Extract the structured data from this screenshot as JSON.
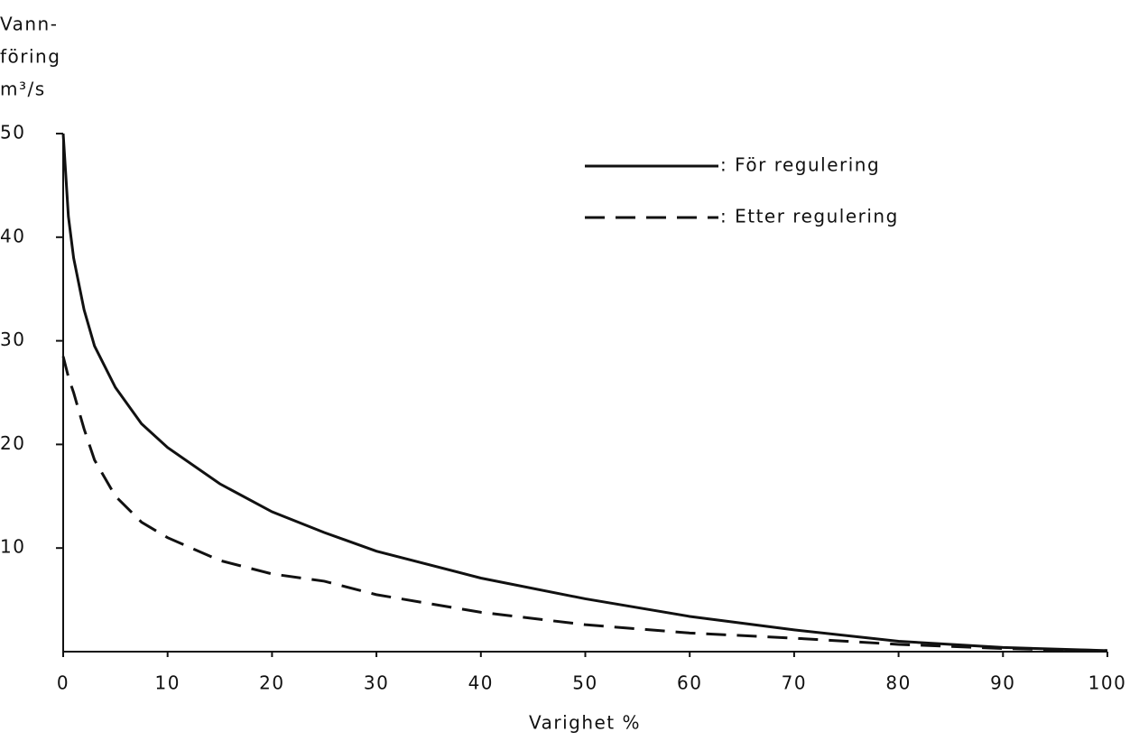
{
  "chart_data": {
    "type": "line",
    "ylabel": [
      "Vann-",
      "föring",
      "m³/s"
    ],
    "xlabel": "Varighet %",
    "x": [
      0,
      0.5,
      1,
      2,
      3,
      5,
      7.5,
      10,
      15,
      20,
      25,
      30,
      40,
      50,
      60,
      70,
      80,
      90,
      100
    ],
    "series": [
      {
        "name": ": För regulering",
        "color": "#111111",
        "linestyle": "solid",
        "values": [
          50,
          42,
          38,
          33,
          29.5,
          25.5,
          22,
          19.7,
          16.2,
          13.5,
          11.5,
          9.7,
          7.1,
          5.1,
          3.4,
          2.1,
          1.0,
          0.4,
          0.1
        ]
      },
      {
        "name": ": Etter regulering",
        "color": "#111111",
        "linestyle": "dashed",
        "values": [
          28.5,
          26.5,
          25,
          21.5,
          18.5,
          15,
          12.5,
          11,
          8.8,
          7.5,
          6.8,
          5.5,
          3.8,
          2.6,
          1.8,
          1.3,
          0.7,
          0.3,
          0.1
        ]
      }
    ],
    "xlim": [
      0,
      100
    ],
    "xticks": [
      0,
      10,
      20,
      30,
      40,
      50,
      60,
      70,
      80,
      90,
      100
    ],
    "ylim": [
      0,
      50
    ],
    "yticks": [
      10,
      20,
      30,
      40,
      50
    ],
    "grid": false,
    "legend": "upper right"
  }
}
